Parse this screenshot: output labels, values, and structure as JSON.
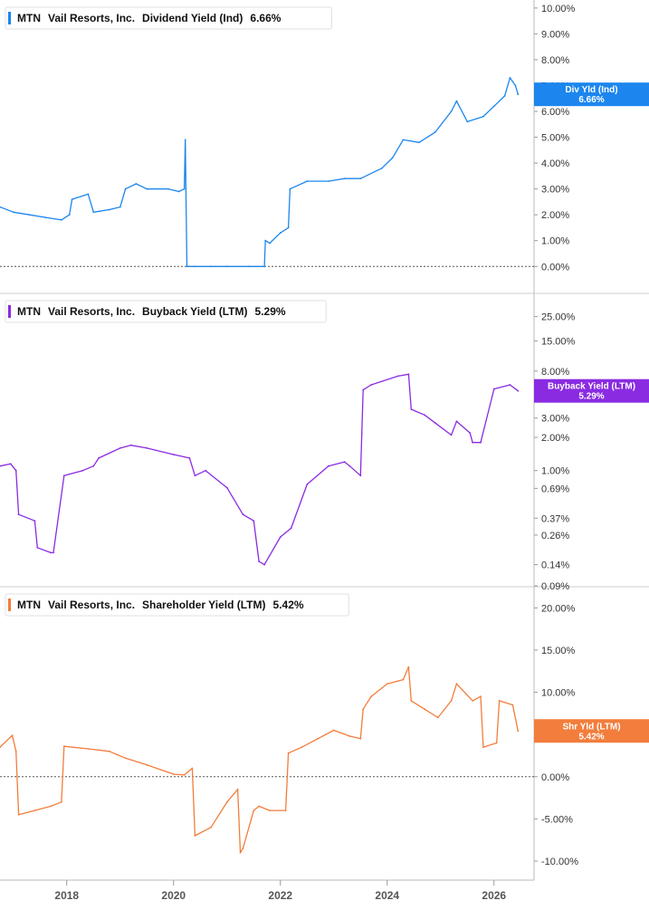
{
  "x_axis": {
    "range": [
      2016.75,
      2026.75
    ],
    "ticks": [
      {
        "value": 2018,
        "label": "2018"
      },
      {
        "value": 2020,
        "label": "2020"
      },
      {
        "value": 2022,
        "label": "2022"
      },
      {
        "value": 2024,
        "label": "2024"
      },
      {
        "value": 2026,
        "label": "2026"
      }
    ]
  },
  "chart_data": [
    {
      "type": "line",
      "ticker": "MTN",
      "company": "Vail Resorts, Inc.",
      "series_name": "Dividend Yield (Ind)",
      "last_value_label": "6.66%",
      "tag": {
        "line1": "Div Yld (Ind)",
        "line2": "6.66%"
      },
      "color": "#1c86ee",
      "scale": "linear",
      "ylim": [
        -0.2,
        10.1
      ],
      "zero_line": true,
      "ticks": [
        {
          "value": 10,
          "label": "10.00%"
        },
        {
          "value": 9,
          "label": "9.00%"
        },
        {
          "value": 8,
          "label": "8.00%"
        },
        {
          "value": 7,
          "label": "7.00%"
        },
        {
          "value": 6,
          "label": "6.00%"
        },
        {
          "value": 5,
          "label": "5.00%"
        },
        {
          "value": 4,
          "label": "4.00%"
        },
        {
          "value": 3,
          "label": "3.00%"
        },
        {
          "value": 2,
          "label": "2.00%"
        },
        {
          "value": 1,
          "label": "1.00%"
        },
        {
          "value": 0,
          "label": "0.00%"
        }
      ],
      "x": [
        2016.75,
        2017.0,
        2017.3,
        2017.6,
        2017.9,
        2018.05,
        2018.1,
        2018.4,
        2018.5,
        2018.8,
        2019.0,
        2019.1,
        2019.3,
        2019.5,
        2019.9,
        2020.1,
        2020.2,
        2020.22,
        2020.25,
        2020.4,
        2020.7,
        2021.0,
        2021.4,
        2021.7,
        2021.72,
        2021.8,
        2022.0,
        2022.15,
        2022.18,
        2022.5,
        2022.9,
        2023.2,
        2023.5,
        2023.9,
        2024.1,
        2024.3,
        2024.6,
        2024.9,
        2025.2,
        2025.3,
        2025.5,
        2025.8,
        2026.0,
        2026.2,
        2026.3,
        2026.4,
        2026.45
      ],
      "y": [
        2.3,
        2.1,
        2.0,
        1.9,
        1.8,
        2.0,
        2.6,
        2.8,
        2.1,
        2.2,
        2.3,
        3.0,
        3.2,
        3.0,
        3.0,
        2.9,
        3.0,
        4.9,
        0.0,
        0.0,
        0.0,
        0.0,
        0.0,
        0.0,
        1.0,
        0.9,
        1.3,
        1.5,
        3.0,
        3.3,
        3.3,
        3.4,
        3.4,
        3.8,
        4.2,
        4.9,
        4.8,
        5.2,
        6.0,
        6.4,
        5.6,
        5.8,
        6.2,
        6.6,
        7.3,
        7.0,
        6.66
      ]
    },
    {
      "type": "line",
      "ticker": "MTN",
      "company": "Vail Resorts, Inc.",
      "series_name": "Buyback Yield (LTM)",
      "last_value_label": "5.29%",
      "tag": {
        "line1": "Buyback Yield (LTM)",
        "line2": "5.29%"
      },
      "color": "#8a2be2",
      "scale": "log",
      "ylim": [
        0.085,
        30
      ],
      "zero_line": false,
      "ticks": [
        {
          "value": 25,
          "label": "25.00%"
        },
        {
          "value": 15,
          "label": "15.00%"
        },
        {
          "value": 8,
          "label": "8.00%"
        },
        {
          "value": 5,
          "label": "5.00%"
        },
        {
          "value": 3,
          "label": "3.00%"
        },
        {
          "value": 2,
          "label": "2.00%"
        },
        {
          "value": 1,
          "label": "1.00%"
        },
        {
          "value": 0.69,
          "label": "0.69%"
        },
        {
          "value": 0.37,
          "label": "0.37%"
        },
        {
          "value": 0.26,
          "label": "0.26%"
        },
        {
          "value": 0.14,
          "label": "0.14%"
        },
        {
          "value": 0.09,
          "label": "0.09%"
        }
      ],
      "x": [
        2016.75,
        2016.95,
        2017.05,
        2017.1,
        2017.4,
        2017.45,
        2017.7,
        2017.75,
        2017.95,
        2018.3,
        2018.5,
        2018.6,
        2019.0,
        2019.2,
        2019.5,
        2020.0,
        2020.3,
        2020.4,
        2020.6,
        2021.0,
        2021.3,
        2021.5,
        2021.6,
        2021.7,
        2022.0,
        2022.2,
        2022.5,
        2022.9,
        2023.2,
        2023.3,
        2023.5,
        2023.55,
        2023.7,
        2024.2,
        2024.4,
        2024.45,
        2024.7,
        2024.9,
        2025.2,
        2025.3,
        2025.55,
        2025.6,
        2025.75,
        2026.0,
        2026.3,
        2026.45
      ],
      "y": [
        1.1,
        1.15,
        1.0,
        0.4,
        0.35,
        0.2,
        0.18,
        0.18,
        0.9,
        1.0,
        1.1,
        1.3,
        1.6,
        1.7,
        1.6,
        1.4,
        1.3,
        0.9,
        1.0,
        0.7,
        0.4,
        0.35,
        0.15,
        0.14,
        0.25,
        0.3,
        0.75,
        1.1,
        1.2,
        1.1,
        0.9,
        5.4,
        6.0,
        7.2,
        7.5,
        3.6,
        3.2,
        2.7,
        2.1,
        2.8,
        2.2,
        1.8,
        1.8,
        5.5,
        6.0,
        5.29
      ]
    },
    {
      "type": "line",
      "ticker": "MTN",
      "company": "Vail Resorts, Inc.",
      "series_name": "Shareholder Yield (LTM)",
      "last_value_label": "5.42%",
      "tag": {
        "line1": "Shr Yld (LTM)",
        "line2": "5.42%"
      },
      "color": "#f27d3c",
      "scale": "linear",
      "ylim": [
        -11.5,
        21
      ],
      "zero_line": true,
      "ticks": [
        {
          "value": 20,
          "label": "20.00%"
        },
        {
          "value": 15,
          "label": "15.00%"
        },
        {
          "value": 10,
          "label": "10.00%"
        },
        {
          "value": 5,
          "label": "5.00%"
        },
        {
          "value": 0,
          "label": "0.00%"
        },
        {
          "value": -5,
          "label": "-5.00%"
        },
        {
          "value": -10,
          "label": "-10.00%"
        }
      ],
      "x": [
        2016.75,
        2016.98,
        2017.05,
        2017.1,
        2017.4,
        2017.7,
        2017.9,
        2017.95,
        2018.4,
        2018.8,
        2019.1,
        2019.5,
        2020.0,
        2020.2,
        2020.35,
        2020.4,
        2020.7,
        2021.0,
        2021.2,
        2021.25,
        2021.3,
        2021.5,
        2021.6,
        2021.8,
        2022.1,
        2022.15,
        2022.4,
        2022.7,
        2023.0,
        2023.3,
        2023.5,
        2023.55,
        2023.7,
        2024.0,
        2024.3,
        2024.4,
        2024.45,
        2024.7,
        2024.95,
        2025.2,
        2025.3,
        2025.6,
        2025.75,
        2025.8,
        2026.05,
        2026.1,
        2026.35,
        2026.45
      ],
      "y": [
        3.5,
        4.9,
        3.0,
        -4.5,
        -4.0,
        -3.5,
        -3.0,
        3.6,
        3.3,
        3.0,
        2.2,
        1.4,
        0.3,
        0.2,
        1.0,
        -7.0,
        -6.0,
        -3.0,
        -1.5,
        -9.0,
        -8.5,
        -4.0,
        -3.5,
        -4.0,
        -4.0,
        2.8,
        3.5,
        4.5,
        5.5,
        4.8,
        4.5,
        8.0,
        9.5,
        11.0,
        11.5,
        13.0,
        9.0,
        8.0,
        7.0,
        9.0,
        11.0,
        9.0,
        9.5,
        3.5,
        4.0,
        9.0,
        8.5,
        5.42
      ]
    }
  ]
}
